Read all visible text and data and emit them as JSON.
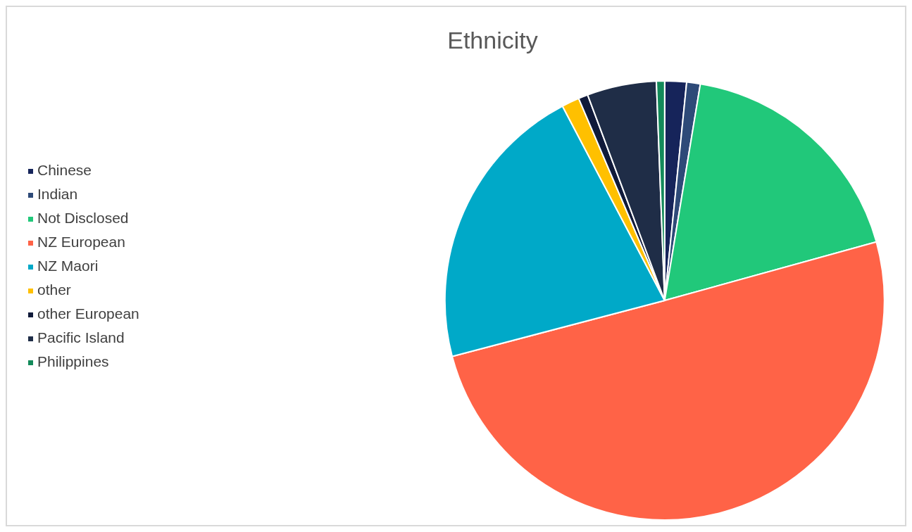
{
  "chart_data": {
    "type": "pie",
    "title": "Ethnicity",
    "categories": [
      "Chinese",
      "Indian",
      "Not Disclosed",
      "NZ European",
      "NZ Maori",
      "other",
      "other European",
      "Pacific Island",
      "Philippines"
    ],
    "values": [
      1.6,
      1.0,
      18.1,
      50.2,
      21.4,
      1.3,
      0.7,
      5.1,
      0.6
    ],
    "colors": [
      "#16245a",
      "#2e4a78",
      "#21c87a",
      "#ff6347",
      "#00a9c8",
      "#ffc000",
      "#101a3a",
      "#1f2d47",
      "#138a5a"
    ],
    "legend": "left"
  }
}
